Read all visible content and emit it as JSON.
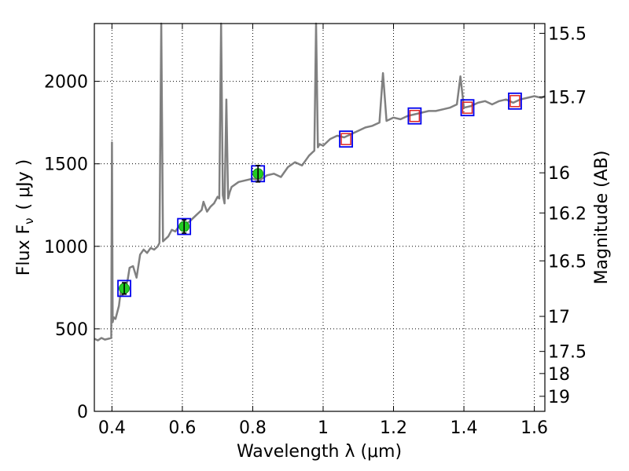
{
  "chart_data": {
    "type": "line",
    "xlabel": "Wavelength  λ (μm)",
    "ylabel_left": "Flux  F",
    "ylabel_left_sub": "ν",
    "ylabel_left_unit": "( μJy )",
    "ylabel_right": "Magnitude (AB)",
    "xlim": [
      0.35,
      1.63
    ],
    "ylim": [
      0,
      2350
    ],
    "grid": true,
    "x_ticks": [
      0.4,
      0.6,
      0.8,
      1.0,
      1.2,
      1.4,
      1.6
    ],
    "x_tick_labels": [
      "0.4",
      "0.6",
      "0.8",
      "1",
      "1.2",
      "1.4",
      "1.6"
    ],
    "y_ticks": [
      0,
      500,
      1000,
      1500,
      2000
    ],
    "y_tick_labels": [
      "0",
      "500",
      "1000",
      "1500",
      "2000"
    ],
    "right_ticks": [
      {
        "label": "15.5",
        "mag": 15.5
      },
      {
        "label": "15.7",
        "mag": 15.7
      },
      {
        "label": "16",
        "mag": 16
      },
      {
        "label": "16.2",
        "mag": 16.2
      },
      {
        "label": "16.5",
        "mag": 16.5
      },
      {
        "label": "17",
        "mag": 17
      },
      {
        "label": "17.5",
        "mag": 17.5
      },
      {
        "label": "18",
        "mag": 18
      },
      {
        "label": "19",
        "mag": 19
      }
    ],
    "colors": {
      "spectrum": "#808080",
      "photometry_fill": "#22cc22",
      "model_box": "#0000ee",
      "model_marker": "#dd2222",
      "error_bar": "#000000"
    },
    "spectrum": {
      "x": [
        0.35,
        0.36,
        0.37,
        0.38,
        0.39,
        0.398,
        0.4,
        0.402,
        0.405,
        0.41,
        0.42,
        0.425,
        0.43,
        0.435,
        0.44,
        0.445,
        0.45,
        0.46,
        0.47,
        0.48,
        0.49,
        0.5,
        0.51,
        0.52,
        0.53,
        0.535,
        0.54,
        0.545,
        0.55,
        0.56,
        0.57,
        0.58,
        0.59,
        0.6,
        0.62,
        0.64,
        0.655,
        0.66,
        0.67,
        0.68,
        0.69,
        0.7,
        0.705,
        0.71,
        0.715,
        0.72,
        0.725,
        0.73,
        0.735,
        0.74,
        0.76,
        0.78,
        0.8,
        0.82,
        0.84,
        0.86,
        0.88,
        0.9,
        0.92,
        0.94,
        0.96,
        0.97,
        0.975,
        0.98,
        0.985,
        0.99,
        1.0,
        1.02,
        1.04,
        1.06,
        1.08,
        1.1,
        1.12,
        1.14,
        1.16,
        1.17,
        1.18,
        1.2,
        1.22,
        1.24,
        1.26,
        1.28,
        1.3,
        1.32,
        1.34,
        1.36,
        1.38,
        1.39,
        1.4,
        1.42,
        1.44,
        1.46,
        1.48,
        1.5,
        1.52,
        1.54,
        1.56,
        1.58,
        1.6,
        1.62,
        1.63
      ],
      "y": [
        440,
        430,
        445,
        435,
        440,
        445,
        1630,
        540,
        570,
        560,
        640,
        730,
        700,
        760,
        750,
        800,
        870,
        880,
        810,
        950,
        980,
        960,
        990,
        980,
        1000,
        1020,
        2350,
        1030,
        1040,
        1060,
        1100,
        1090,
        1120,
        1120,
        1150,
        1190,
        1220,
        1270,
        1210,
        1240,
        1260,
        1300,
        1290,
        2350,
        1310,
        1260,
        1890,
        1290,
        1330,
        1360,
        1390,
        1400,
        1410,
        1400,
        1430,
        1440,
        1420,
        1480,
        1510,
        1490,
        1550,
        1570,
        1580,
        2350,
        1600,
        1620,
        1610,
        1650,
        1670,
        1660,
        1680,
        1700,
        1720,
        1730,
        1750,
        2050,
        1760,
        1780,
        1770,
        1790,
        1800,
        1810,
        1820,
        1820,
        1830,
        1840,
        1860,
        2030,
        1840,
        1850,
        1870,
        1880,
        1860,
        1880,
        1890,
        1870,
        1890,
        1900,
        1910,
        1900,
        1910
      ]
    },
    "photometry": {
      "x": [
        0.435,
        0.605,
        0.815
      ],
      "y": [
        745,
        1120,
        1440
      ],
      "yerr": [
        35,
        40,
        50
      ]
    },
    "model_points": {
      "x": [
        0.435,
        0.605,
        0.815,
        1.065,
        1.26,
        1.41,
        1.545
      ],
      "y": [
        745,
        1120,
        1440,
        1650,
        1790,
        1840,
        1880
      ]
    }
  }
}
